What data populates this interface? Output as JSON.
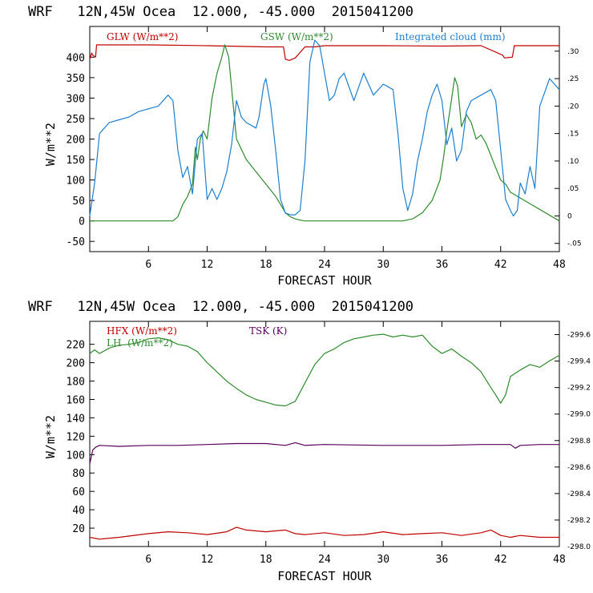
{
  "chart_data": [
    {
      "type": "line",
      "header": "WRF   12N,45W Ocea  12.000, -45.000  2015041200",
      "xlabel": "FORECAST HOUR",
      "ylabel": "W/m**2",
      "xlim": [
        0,
        48
      ],
      "ylim": [
        -75,
        475
      ],
      "xticks": [
        6,
        12,
        18,
        24,
        30,
        36,
        42,
        48
      ],
      "yticks": [
        -50,
        0,
        50,
        100,
        150,
        200,
        250,
        300,
        350,
        400
      ],
      "ylim_right": [
        -0.065,
        0.345
      ],
      "yticks_right": [
        -0.05,
        0,
        0.05,
        0.1,
        0.15,
        0.2,
        0.25,
        0.3
      ],
      "yticks_right_labels": [
        "-.05",
        "0",
        ".05",
        ".10",
        ".15",
        ".20",
        ".25",
        ".30"
      ],
      "legend": [
        "GLW (W/m**2)",
        "GSW (W/m**2)",
        "Integrated cloud (mm)"
      ],
      "series": [
        {
          "name": "GLW (W/m**2)",
          "color": "#c00000",
          "axis": "left",
          "x": [
            0,
            0.2,
            0.3,
            0.6,
            0.7,
            1,
            6,
            12,
            18,
            19.8,
            20,
            20.4,
            21,
            22,
            22.5,
            23,
            24,
            30,
            36,
            40,
            42.2,
            42.4,
            43.2,
            43.4,
            44,
            48
          ],
          "y": [
            395,
            410,
            405,
            400,
            430,
            430,
            430,
            428,
            425,
            425,
            395,
            392,
            398,
            425,
            425,
            425,
            428,
            428,
            427,
            428,
            405,
            398,
            400,
            428,
            428,
            428
          ]
        },
        {
          "name": "GSW (W/m**2)",
          "color": "#2e8b2e",
          "axis": "left",
          "x": [
            0,
            8.5,
            9,
            9.5,
            10,
            10.5,
            10.8,
            11,
            11.3,
            11.6,
            12,
            12.5,
            13,
            13.5,
            13.8,
            14.2,
            14.6,
            15,
            16,
            17,
            18,
            19,
            19.5,
            20,
            20.5,
            21,
            21.5,
            22,
            32,
            33,
            34,
            35,
            35.8,
            36.2,
            36.5,
            37,
            37.3,
            37.6,
            38,
            38.5,
            39,
            39.5,
            40,
            40.5,
            41,
            41.5,
            42,
            42.5,
            43,
            48
          ],
          "y": [
            0,
            0,
            10,
            40,
            60,
            90,
            180,
            150,
            200,
            220,
            200,
            300,
            360,
            400,
            430,
            400,
            300,
            200,
            150,
            120,
            90,
            60,
            40,
            20,
            10,
            5,
            2,
            0,
            0,
            5,
            20,
            50,
            100,
            160,
            220,
            300,
            350,
            330,
            230,
            260,
            240,
            200,
            210,
            190,
            160,
            130,
            100,
            90,
            70,
            0
          ]
        },
        {
          "name": "Integrated cloud (mm)",
          "color": "#1e7fd0",
          "axis": "right",
          "x": [
            0,
            0.5,
            1,
            2,
            3,
            4,
            5,
            6,
            7,
            8,
            8.5,
            9,
            9.5,
            10,
            10.5,
            11,
            11.5,
            12,
            12.5,
            13,
            13.5,
            14,
            14.5,
            15,
            15.5,
            16,
            17,
            17.3,
            17.8,
            18,
            18.5,
            19,
            19.5,
            20,
            20.5,
            21,
            21.5,
            22,
            22.5,
            23,
            23.5,
            24,
            24.5,
            25,
            25.5,
            26,
            27,
            28,
            29,
            30,
            31,
            31.5,
            32,
            32.5,
            33,
            33.5,
            34,
            34.5,
            35,
            35.5,
            36,
            36.5,
            37,
            37.5,
            38,
            38.5,
            39,
            40,
            41,
            41.5,
            42,
            42.5,
            43,
            43.3,
            43.7,
            44,
            44.5,
            45,
            45.5,
            46,
            47,
            48
          ],
          "y": [
            0.0,
            0.06,
            0.15,
            0.17,
            0.175,
            0.18,
            0.19,
            0.195,
            0.2,
            0.22,
            0.21,
            0.12,
            0.07,
            0.09,
            0.04,
            0.14,
            0.15,
            0.03,
            0.05,
            0.03,
            0.05,
            0.08,
            0.13,
            0.21,
            0.18,
            0.17,
            0.16,
            0.18,
            0.24,
            0.25,
            0.2,
            0.12,
            0.03,
            0.005,
            0.002,
            0.002,
            0.01,
            0.1,
            0.28,
            0.32,
            0.31,
            0.26,
            0.21,
            0.22,
            0.25,
            0.26,
            0.21,
            0.26,
            0.22,
            0.24,
            0.23,
            0.15,
            0.05,
            0.01,
            0.04,
            0.1,
            0.14,
            0.19,
            0.22,
            0.24,
            0.21,
            0.13,
            0.16,
            0.1,
            0.12,
            0.19,
            0.21,
            0.22,
            0.23,
            0.21,
            0.12,
            0.03,
            0.01,
            0.0,
            0.01,
            0.06,
            0.04,
            0.09,
            0.05,
            0.2,
            0.25,
            0.23
          ]
        }
      ]
    },
    {
      "type": "line",
      "header": "WRF   12N,45W Ocea  12.000, -45.000  2015041200",
      "xlabel": "FORECAST HOUR",
      "ylabel": "W/m**2",
      "xlim": [
        0,
        48
      ],
      "ylim": [
        0,
        245
      ],
      "xticks": [
        6,
        12,
        18,
        24,
        30,
        36,
        42,
        48
      ],
      "yticks": [
        20,
        40,
        60,
        80,
        100,
        120,
        140,
        160,
        180,
        200,
        220
      ],
      "ylim_right": [
        298.0,
        299.7
      ],
      "yticks_right": [
        298.0,
        298.2,
        298.4,
        298.6,
        298.8,
        299.0,
        299.2,
        299.4,
        299.6
      ],
      "yticks_right_labels": [
        "298.0",
        "298.2",
        "298.4",
        "298.6",
        "298.8",
        "299.0",
        "299.2",
        "299.4",
        "299.6"
      ],
      "legend": [
        "HFX (W/m**2)",
        "LH  (W/m**2)",
        "TSK (K)"
      ],
      "series": [
        {
          "name": "HFX (W/m**2)",
          "color": "#c00000",
          "axis": "left",
          "x": [
            0,
            1,
            3,
            6,
            8,
            10,
            12,
            14,
            15,
            16,
            18,
            20,
            21,
            22,
            24,
            26,
            28,
            30,
            32,
            34,
            36,
            38,
            40,
            41,
            42,
            43,
            44,
            46,
            48
          ],
          "y": [
            10,
            8,
            10,
            14,
            16,
            15,
            13,
            16,
            21,
            18,
            16,
            18,
            14,
            13,
            15,
            12,
            13,
            16,
            13,
            14,
            15,
            12,
            15,
            18,
            12,
            10,
            12,
            10,
            10
          ]
        },
        {
          "name": "LH  (W/m**2)",
          "color": "#2e8b2e",
          "axis": "left",
          "x": [
            0,
            0.5,
            1,
            2,
            3,
            4,
            5,
            6,
            7,
            8,
            9,
            10,
            11,
            12,
            13,
            14,
            15,
            16,
            17,
            18,
            19,
            20,
            21,
            22,
            23,
            24,
            25,
            26,
            27,
            28,
            29,
            30,
            31,
            32,
            33,
            34,
            35,
            36,
            37,
            38,
            39,
            40,
            41,
            41.5,
            42,
            42.5,
            43,
            44,
            45,
            46,
            47,
            48
          ],
          "y": [
            210,
            214,
            210,
            216,
            219,
            220,
            222,
            226,
            227,
            225,
            220,
            218,
            212,
            200,
            190,
            180,
            172,
            165,
            160,
            157,
            154,
            153,
            158,
            178,
            198,
            210,
            215,
            222,
            226,
            228,
            230,
            231,
            228,
            230,
            228,
            230,
            218,
            210,
            215,
            207,
            200,
            190,
            173,
            165,
            156,
            165,
            185,
            192,
            198,
            195,
            202,
            208
          ]
        },
        {
          "name": "TSK (K)",
          "color": "#5a005a",
          "axis": "left",
          "x": [
            0,
            0.3,
            0.6,
            1,
            3,
            6,
            9,
            12,
            15,
            18,
            20,
            21,
            22,
            24,
            30,
            36,
            40,
            42,
            43,
            43.5,
            44,
            46,
            48
          ],
          "y": [
            90,
            105,
            108,
            110,
            109,
            110,
            110,
            111,
            112,
            112,
            110,
            113,
            110,
            111,
            110,
            110,
            111,
            111,
            111,
            107,
            110,
            111,
            111
          ]
        }
      ]
    }
  ]
}
